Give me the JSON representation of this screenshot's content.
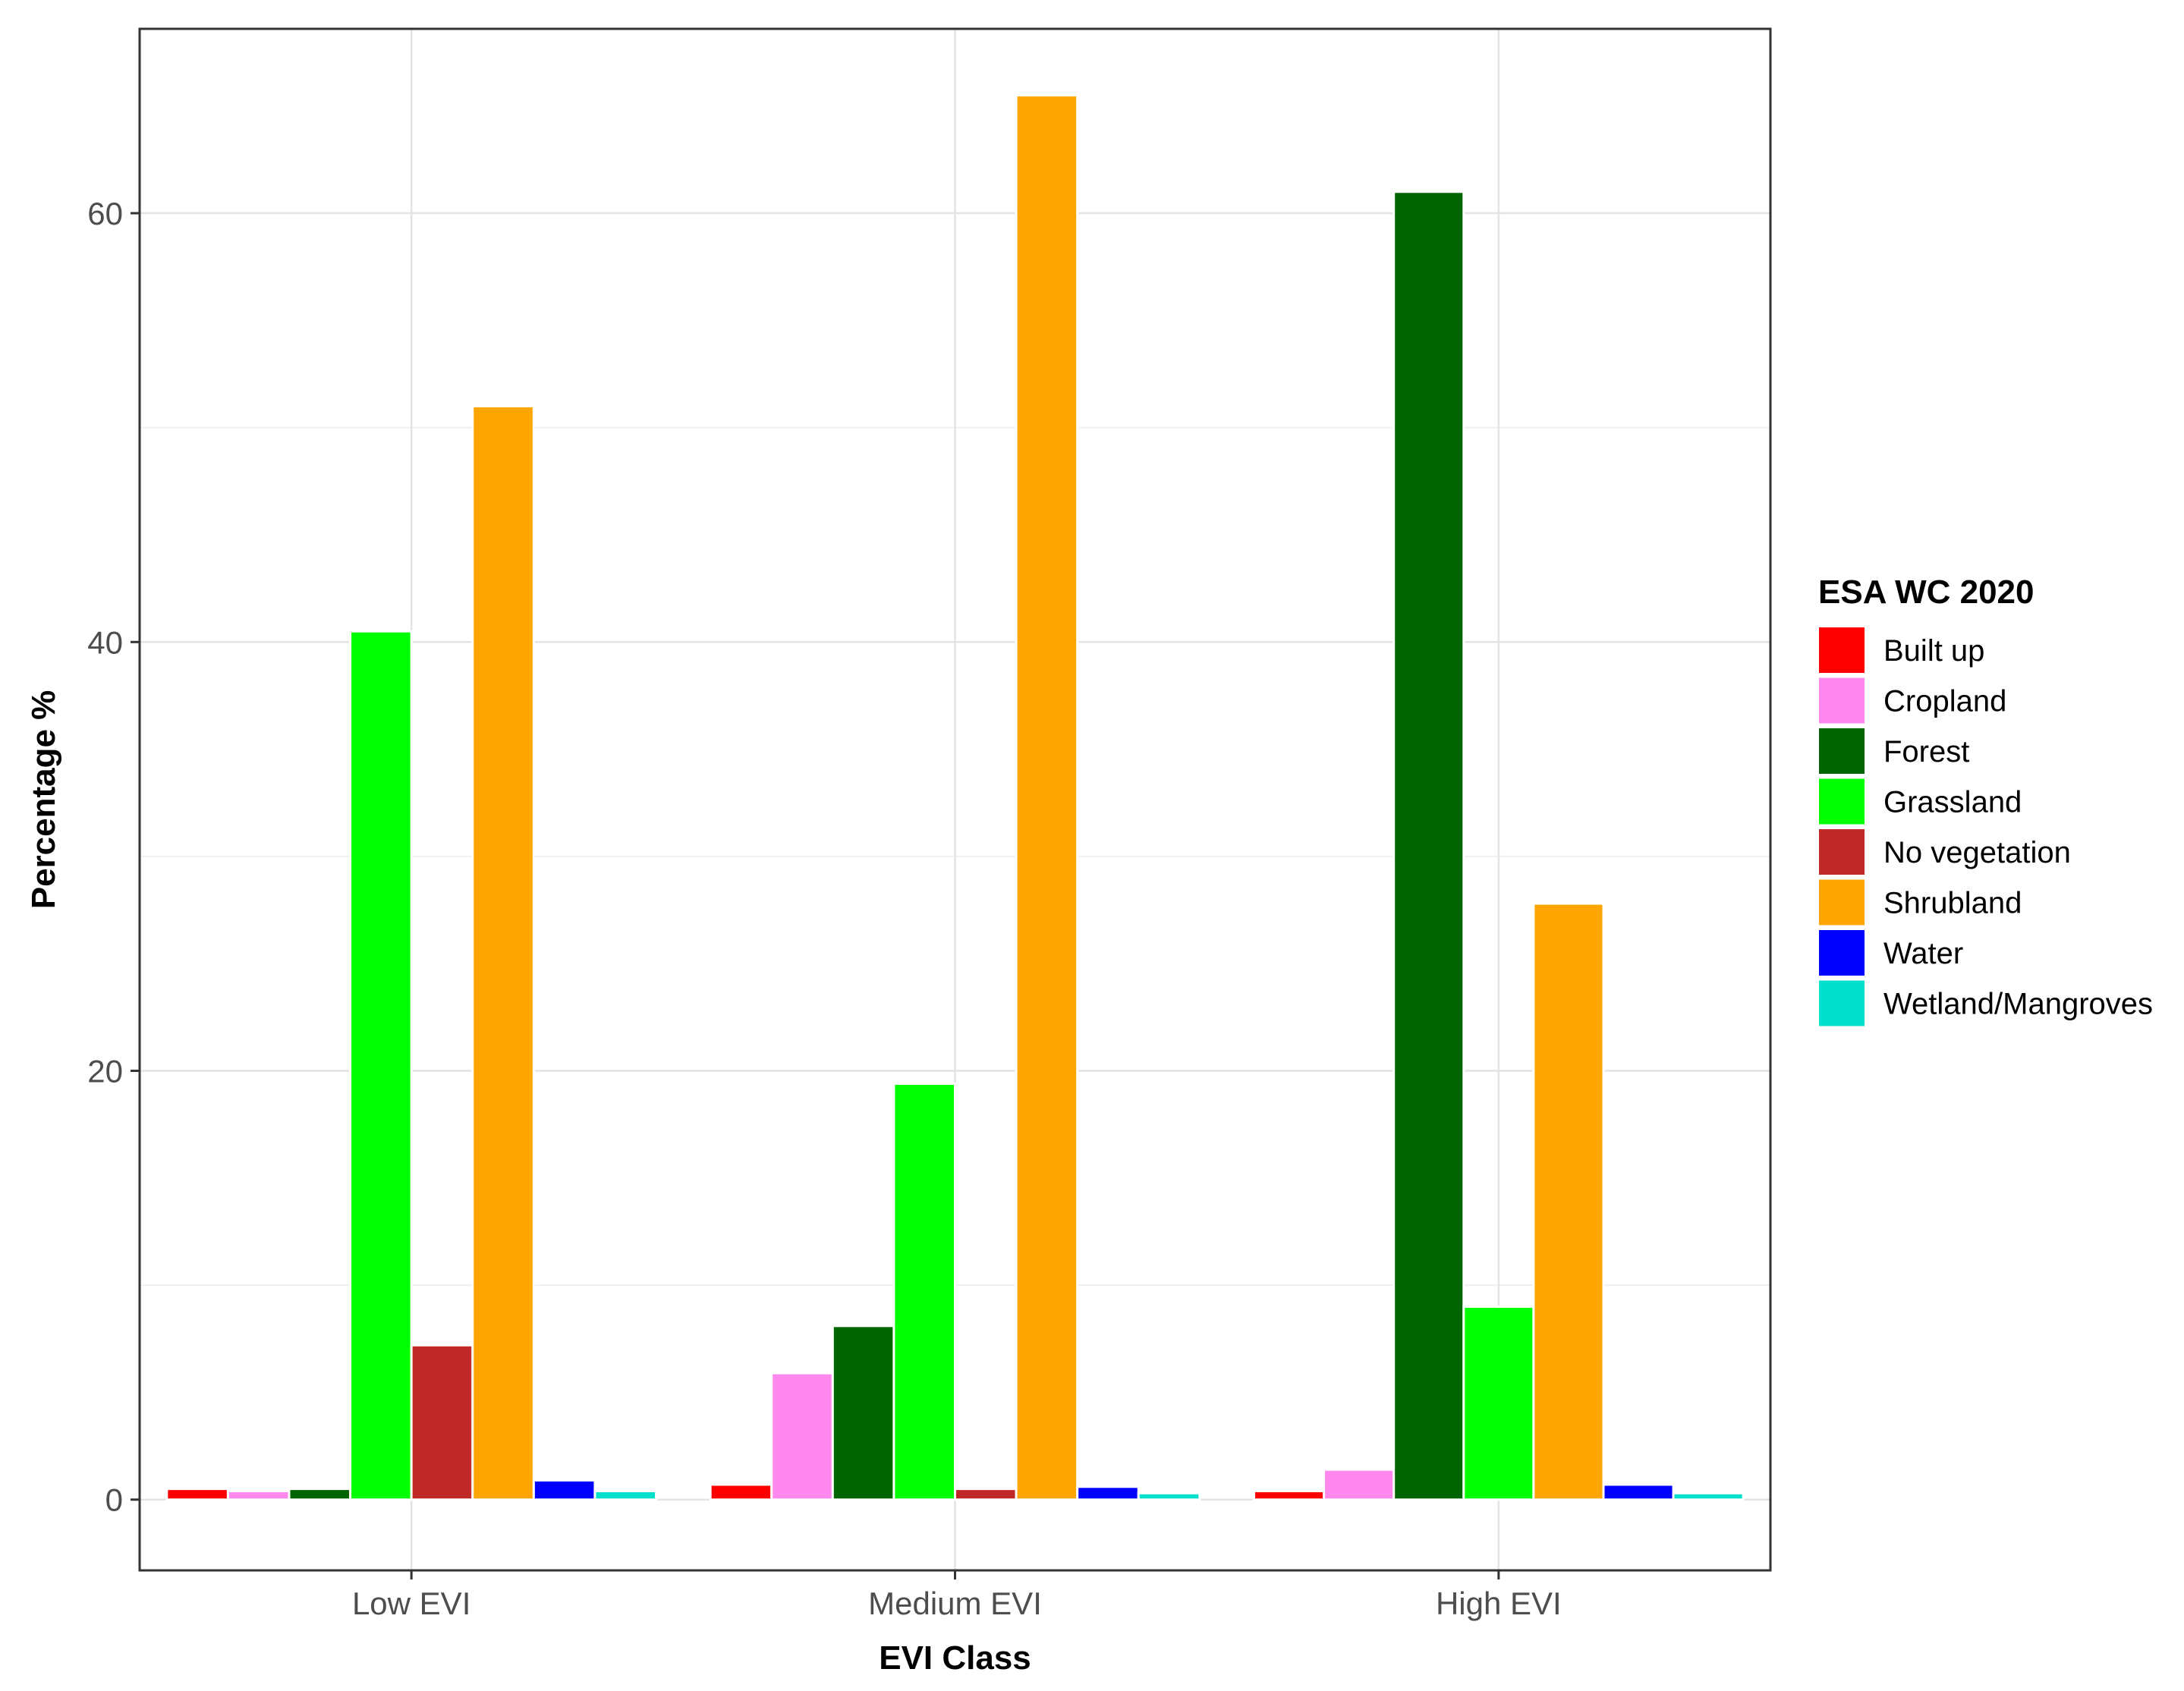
{
  "chart_data": {
    "type": "bar",
    "xlabel": "EVI Class",
    "ylabel": "Percentage %",
    "ylim": [
      -3.3,
      68.6
    ],
    "yticks": [
      0,
      20,
      40,
      60
    ],
    "grid": true,
    "legend_position": "right",
    "legend_title": "ESA WC 2020",
    "categories": [
      "Low EVI",
      "Medium EVI",
      "High EVI"
    ],
    "series": [
      {
        "name": "Built up",
        "color": "#ff0000",
        "values": [
          0.5,
          0.7,
          0.4
        ]
      },
      {
        "name": "Cropland",
        "color": "#ff88ee",
        "values": [
          0.4,
          5.9,
          1.4
        ]
      },
      {
        "name": "Forest",
        "color": "#006400",
        "values": [
          0.5,
          8.1,
          61.0
        ]
      },
      {
        "name": "Grassland",
        "color": "#00ff00",
        "values": [
          40.5,
          19.4,
          9.0
        ]
      },
      {
        "name": "No vegetation",
        "color": "#c02828",
        "values": [
          7.2,
          0.5,
          null
        ]
      },
      {
        "name": "Shrubland",
        "color": "#ffa500",
        "values": [
          51.0,
          65.5,
          27.8
        ]
      },
      {
        "name": "Water",
        "color": "#0000ff",
        "values": [
          0.9,
          0.6,
          0.7
        ]
      },
      {
        "name": "Wetland/Mangroves",
        "color": "#00e0cc",
        "values": [
          0.4,
          0.3,
          0.3
        ]
      }
    ]
  }
}
